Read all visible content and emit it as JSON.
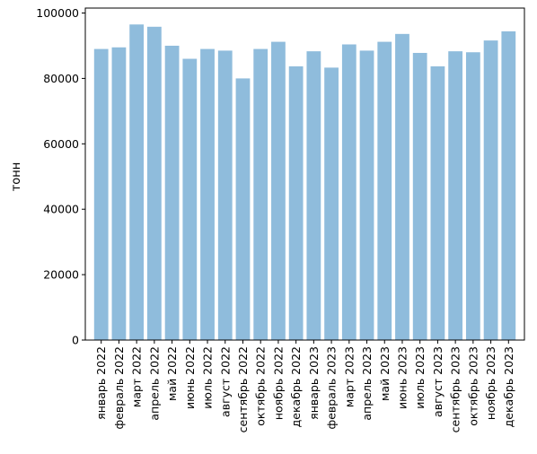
{
  "chart_data": {
    "type": "bar",
    "title": "",
    "xlabel": "",
    "ylabel": "тонн",
    "ylim": [
      0,
      100000
    ],
    "yticks": [
      0,
      20000,
      40000,
      60000,
      80000,
      100000
    ],
    "grid": false,
    "bar_color": "#8fbcdc",
    "categories": [
      "январь 2022",
      "февраль 2022",
      "март 2022",
      "апрель 2022",
      "май 2022",
      "июнь 2022",
      "июль 2022",
      "август 2022",
      "сентябрь 2022",
      "октябрь 2022",
      "ноябрь 2022",
      "декабрь 2022",
      "январь 2023",
      "февраль 2023",
      "март 2023",
      "апрель 2023",
      "май 2023",
      "июнь 2023",
      "июль 2023",
      "август 2023",
      "сентябрь 2023",
      "октябрь 2023",
      "ноябрь 2023",
      "декабрь 2023"
    ],
    "values": [
      89000,
      89500,
      96500,
      95800,
      90000,
      86000,
      89000,
      88500,
      80000,
      89000,
      91200,
      83700,
      88300,
      83300,
      90400,
      88500,
      91200,
      93600,
      87800,
      83700,
      88300,
      88000,
      91600,
      94400
    ]
  }
}
